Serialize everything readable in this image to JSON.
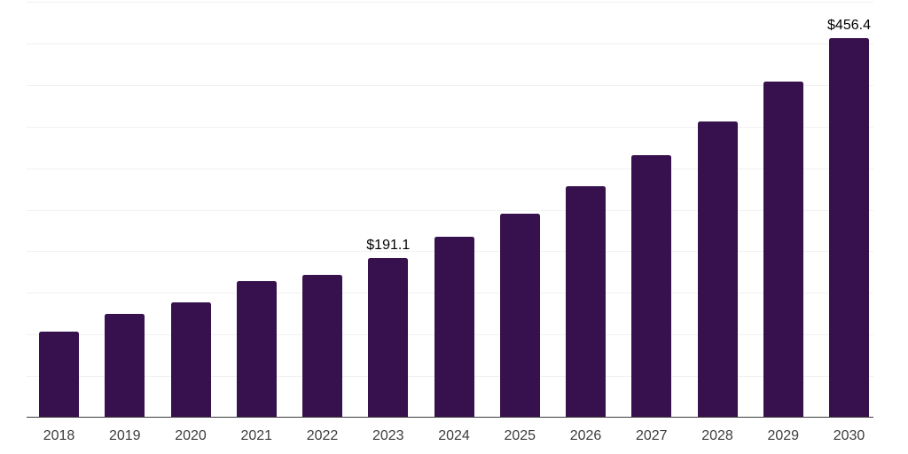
{
  "chart_data": {
    "type": "bar",
    "title": "",
    "xlabel": "",
    "ylabel": "",
    "categories": [
      "2018",
      "2019",
      "2020",
      "2021",
      "2022",
      "2023",
      "2024",
      "2025",
      "2026",
      "2027",
      "2028",
      "2029",
      "2030"
    ],
    "values": [
      103.0,
      124.3,
      137.6,
      163.3,
      171.2,
      191.1,
      217.0,
      245.2,
      277.5,
      315.5,
      355.9,
      404.0,
      456.4
    ],
    "value_labels": [
      "",
      "",
      "",
      "",
      "",
      "$191.1",
      "",
      "",
      "",
      "",
      "",
      "",
      "$456.4"
    ],
    "ylim": [
      0,
      500
    ],
    "gridline_interval": 50,
    "grid": "horizontal-only",
    "y_tick_labels_shown": false,
    "legend_position": "none",
    "colors": {
      "bar": "#37104e",
      "gridline": "#f1f1f1",
      "axis_line": "#3c3c3c",
      "x_tick_label": "#3d3d3d",
      "value_label": "#000000",
      "background": "#ffffff"
    }
  }
}
